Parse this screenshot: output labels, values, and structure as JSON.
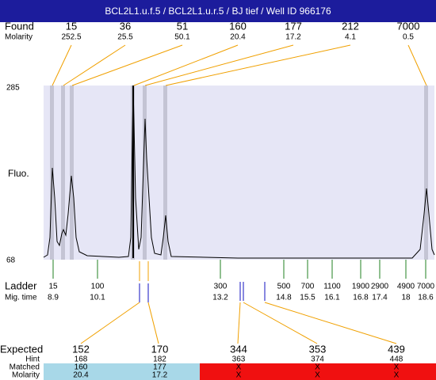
{
  "title": "BCL2L1.u.f.5 / BCL2L1.u.r.5 / BJ tief / Well ID 966176",
  "found": {
    "label": "Found",
    "molarity_label": "Molarity",
    "peaks": [
      {
        "size": 15,
        "molarity": 252.5
      },
      {
        "size": 36,
        "molarity": 25.5
      },
      {
        "size": 51,
        "molarity": 50.1
      },
      {
        "size": 160,
        "molarity": 20.4
      },
      {
        "size": 177,
        "molarity": 17.2
      },
      {
        "size": 212,
        "molarity": 4.1
      },
      {
        "size": 7000,
        "molarity": 0.5
      }
    ]
  },
  "plot": {
    "y_label": "Fluo.",
    "y_max": 285,
    "y_min": 68
  },
  "ladder": {
    "label": "Ladder",
    "time_label": "Mig. time",
    "sizes": [
      15,
      100,
      300,
      500,
      700,
      1100,
      1900,
      2900,
      4900,
      7000
    ],
    "times": [
      8.9,
      10.1,
      13.2,
      14.8,
      15.5,
      16.1,
      16.8,
      17.4,
      18,
      18.6
    ]
  },
  "expected": {
    "label": "Expected",
    "hint_label": "Hint",
    "matched_label": "Matched",
    "molarity_label": "Molarity",
    "columns": [
      {
        "expected": 152,
        "hint": 168,
        "matched": 160,
        "molarity": 20.4
      },
      {
        "expected": 170,
        "hint": 182,
        "matched": 177,
        "molarity": 17.2
      },
      {
        "expected": 344,
        "hint": 363,
        "matched": "X",
        "molarity": "X"
      },
      {
        "expected": 353,
        "hint": 374,
        "matched": "X",
        "molarity": "X"
      },
      {
        "expected": 439,
        "hint": 448,
        "matched": "X",
        "molarity": "X"
      }
    ]
  }
}
